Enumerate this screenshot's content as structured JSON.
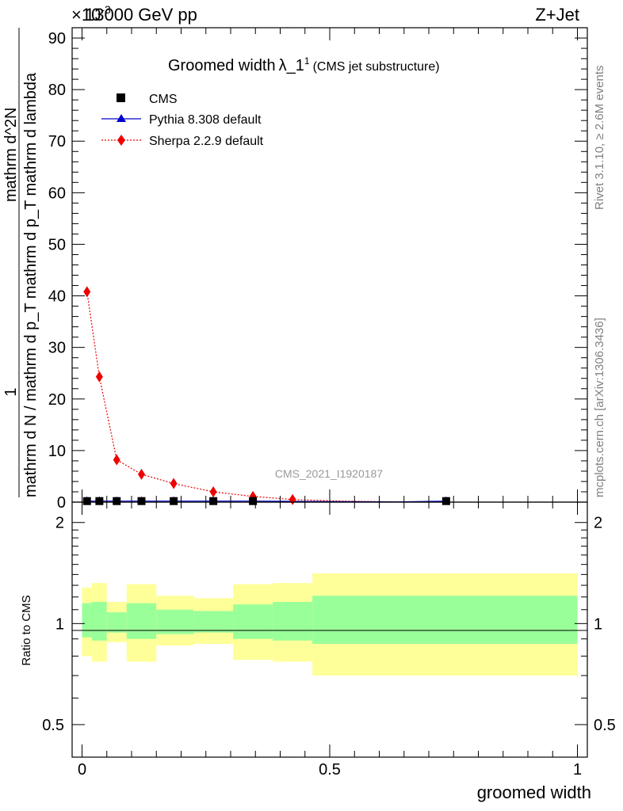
{
  "header": {
    "energy_label": "13000 GeV pp",
    "process_label": "Z+Jet",
    "exponent_label": "×10",
    "exponent_power": "-3"
  },
  "side_labels": {
    "rivet": "Rivet 3.1.10, ≥ 2.6M events",
    "mcplots": "mcplots.cern.ch [arXiv:1306.3436]"
  },
  "watermark": "CMS_2021_I1920187",
  "chart_data": [
    {
      "type": "line",
      "title": "Groomed width",
      "title_symbol": "λ_1",
      "title_superscript": "1",
      "subtitle": "(CMS jet substructure)",
      "ylabel_numerator": "1",
      "ylabel_denominator": "mathrm d N / mathrm d p_T mathrm d p_T mathrm d lambda",
      "ylabel_top": "mathrm d^2N",
      "ylim": [
        0,
        92
      ],
      "xlim": [
        -0.02,
        1.02
      ],
      "yticks": [
        0,
        10,
        20,
        30,
        40,
        50,
        60,
        70,
        80,
        90
      ],
      "legend_position": "top-left",
      "series": [
        {
          "name": "CMS",
          "marker": "square",
          "color": "#000000",
          "x": [
            0.01,
            0.035,
            0.07,
            0.12,
            0.185,
            0.265,
            0.345,
            0.425,
            0.525,
            0.64,
            0.735
          ],
          "y": [
            0.2,
            0.2,
            0.2,
            0.2,
            0.2,
            0.2,
            0.2,
            0.15,
            0.1,
            0.05,
            0.2
          ]
        },
        {
          "name": "Pythia 8.308 default",
          "marker": "triangle",
          "color": "#0000cc",
          "x": [
            0.01,
            0.035,
            0.07,
            0.12,
            0.185,
            0.265,
            0.345,
            0.425,
            0.525,
            0.64,
            0.735
          ],
          "y": [
            0.2,
            0.2,
            0.2,
            0.2,
            0.2,
            0.2,
            0.2,
            0.15,
            0.1,
            0.05,
            0.2
          ]
        },
        {
          "name": "Sherpa 2.2.9 default",
          "marker": "diamond",
          "color": "#ee0000",
          "x": [
            0.01,
            0.035,
            0.07,
            0.12,
            0.185,
            0.265,
            0.345,
            0.425,
            0.525,
            0.64,
            0.735
          ],
          "y": [
            40.8,
            24.3,
            8.2,
            5.4,
            3.6,
            2.0,
            1.1,
            0.5,
            0.2,
            0.05,
            0.0
          ]
        }
      ]
    },
    {
      "type": "area",
      "ylabel": "Ratio to CMS",
      "xlabel": "groomed width",
      "ylim": [
        0.4,
        2.3
      ],
      "xlim": [
        -0.02,
        1.02
      ],
      "yticks": [
        0.5,
        1,
        2
      ],
      "xticks": [
        0,
        0.5,
        1
      ],
      "reference_line": 1,
      "bins": [
        {
          "lo": 0.0,
          "hi": 0.02,
          "inner_lo": 0.91,
          "inner_hi": 1.15,
          "outer_lo": 0.8,
          "outer_hi": 1.28
        },
        {
          "lo": 0.02,
          "hi": 0.05,
          "inner_lo": 0.89,
          "inner_hi": 1.16,
          "outer_lo": 0.77,
          "outer_hi": 1.32
        },
        {
          "lo": 0.05,
          "hi": 0.09,
          "inner_lo": 0.94,
          "inner_hi": 1.08,
          "outer_lo": 0.88,
          "outer_hi": 1.16
        },
        {
          "lo": 0.09,
          "hi": 0.15,
          "inner_lo": 0.9,
          "inner_hi": 1.15,
          "outer_lo": 0.77,
          "outer_hi": 1.31
        },
        {
          "lo": 0.15,
          "hi": 0.225,
          "inner_lo": 0.93,
          "inner_hi": 1.1,
          "outer_lo": 0.86,
          "outer_hi": 1.21
        },
        {
          "lo": 0.225,
          "hi": 0.305,
          "inner_lo": 0.94,
          "inner_hi": 1.09,
          "outer_lo": 0.87,
          "outer_hi": 1.19
        },
        {
          "lo": 0.305,
          "hi": 0.385,
          "inner_lo": 0.9,
          "inner_hi": 1.14,
          "outer_lo": 0.78,
          "outer_hi": 1.31
        },
        {
          "lo": 0.385,
          "hi": 0.465,
          "inner_lo": 0.89,
          "inner_hi": 1.16,
          "outer_lo": 0.77,
          "outer_hi": 1.32
        },
        {
          "lo": 0.465,
          "hi": 1.0,
          "inner_lo": 0.87,
          "inner_hi": 1.21,
          "outer_lo": 0.7,
          "outer_hi": 1.41
        }
      ],
      "band_colors": {
        "inner": "#99ff99",
        "outer": "#ffff99"
      }
    }
  ]
}
